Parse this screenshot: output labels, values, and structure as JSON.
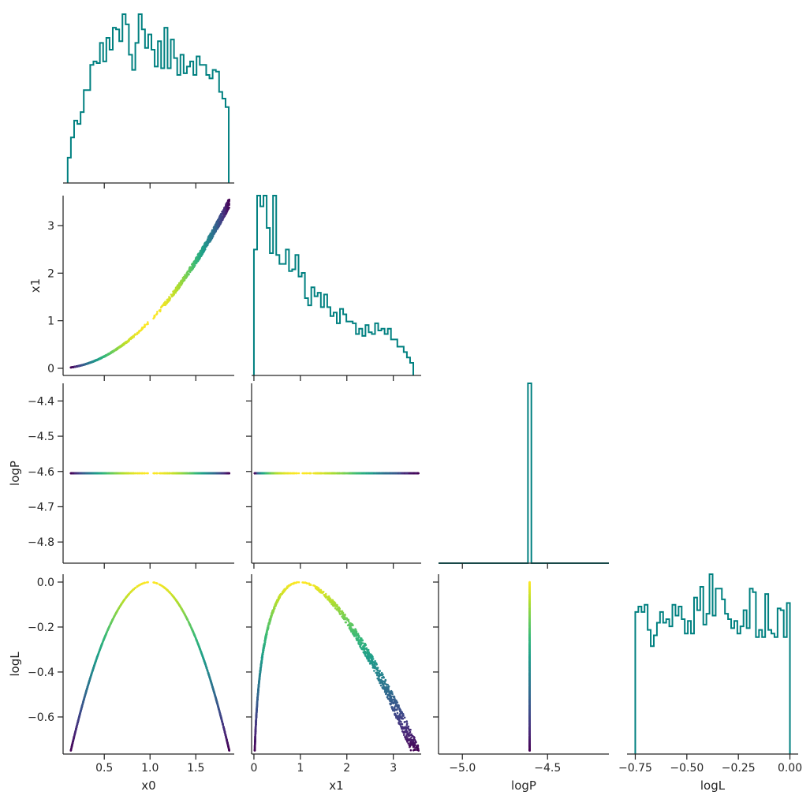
{
  "chart_data": {
    "type": "corner",
    "parameters": [
      "x0",
      "x1",
      "logP",
      "logL"
    ],
    "hist_color": "#008080",
    "colormap": "viridis",
    "color_by": "logL",
    "panels": [
      {
        "type": "histogram",
        "x": "x0",
        "xlim": [
          0.05,
          1.92
        ],
        "bin_edges_range": [
          0.1,
          1.86
        ],
        "ylim": [
          0,
          1
        ],
        "values": [
          0.15,
          0.27,
          0.37,
          0.35,
          0.42,
          0.55,
          0.55,
          0.7,
          0.72,
          0.71,
          0.83,
          0.72,
          0.86,
          0.79,
          0.92,
          0.91,
          0.84,
          1.0,
          0.94,
          0.76,
          0.67,
          0.83,
          1.0,
          0.91,
          0.8,
          0.88,
          0.79,
          0.69,
          0.84,
          0.68,
          0.92,
          0.68,
          0.85,
          0.74,
          0.64,
          0.76,
          0.65,
          0.69,
          0.72,
          0.64,
          0.75,
          0.7,
          0.7,
          0.64,
          0.62,
          0.67,
          0.66,
          0.54,
          0.5,
          0.45
        ],
        "tick_values": [
          0.5,
          1.0,
          1.5
        ]
      },
      {
        "type": "scatter",
        "x": "x0",
        "y": "x1",
        "xlim": [
          0.05,
          1.92
        ],
        "ylim": [
          -0.15,
          3.63
        ],
        "relation": "x1 = x0^2",
        "y_ticks": [
          0,
          1,
          2,
          3
        ],
        "y_tick_labels": [
          "0",
          "1",
          "2",
          "3"
        ]
      },
      {
        "type": "histogram",
        "x": "x1",
        "xlim": [
          -0.05,
          3.6
        ],
        "bin_edges_range": [
          0.0,
          3.43
        ],
        "ylim": [
          0,
          1
        ],
        "values": [
          0.7,
          1.0,
          0.94,
          1.0,
          0.82,
          0.68,
          1.0,
          0.67,
          0.62,
          0.62,
          0.7,
          0.58,
          0.59,
          0.67,
          0.55,
          0.57,
          0.43,
          0.39,
          0.49,
          0.44,
          0.46,
          0.38,
          0.45,
          0.38,
          0.33,
          0.35,
          0.29,
          0.37,
          0.34,
          0.3,
          0.3,
          0.29,
          0.23,
          0.26,
          0.22,
          0.28,
          0.24,
          0.23,
          0.29,
          0.25,
          0.26,
          0.23,
          0.26,
          0.2,
          0.2,
          0.16,
          0.16,
          0.13,
          0.1,
          0.07
        ],
        "tick_values": [
          0,
          1,
          2,
          3
        ]
      },
      {
        "type": "scatter",
        "x": "x0",
        "y": "logP",
        "xlim": [
          0.05,
          1.92
        ],
        "ylim": [
          -4.86,
          -4.35
        ],
        "constant_y": -4.605,
        "y_ticks": [
          -4.8,
          -4.7,
          -4.6,
          -4.5,
          -4.4
        ],
        "y_tick_labels": [
          "−4.8",
          "−4.7",
          "−4.6",
          "−4.5",
          "−4.4"
        ]
      },
      {
        "type": "scatter",
        "x": "x1",
        "y": "logP",
        "xlim": [
          -0.05,
          3.6
        ],
        "ylim": [
          -4.86,
          -4.35
        ],
        "constant_y": -4.605
      },
      {
        "type": "histogram",
        "x": "logP",
        "xlim": [
          -5.14,
          -4.14
        ],
        "spike_at": -4.605,
        "spike_width": 0.02,
        "ylim": [
          0,
          1
        ],
        "tick_values": [
          -5.0,
          -4.5
        ]
      },
      {
        "type": "scatter",
        "x": "x0",
        "y": "logL",
        "xlim": [
          0.05,
          1.92
        ],
        "ylim": [
          -0.765,
          0.035
        ],
        "relation": "logL = -(x0 - 1)^2",
        "y_ticks": [
          -0.6,
          -0.4,
          -0.2,
          0.0
        ],
        "y_tick_labels": [
          "−0.6",
          "−0.4",
          "−0.2",
          "0.0"
        ]
      },
      {
        "type": "scatter",
        "x": "x1",
        "y": "logL",
        "xlim": [
          -0.05,
          3.6
        ],
        "ylim": [
          -0.765,
          0.035
        ],
        "relation": "logL = -(sqrt(x1) - 1)^2"
      },
      {
        "type": "scatter",
        "x": "logP",
        "y": "logL",
        "xlim": [
          -5.14,
          -4.14
        ],
        "ylim": [
          -0.765,
          0.035
        ],
        "constant_x": -4.605
      },
      {
        "type": "histogram",
        "x": "logL",
        "xlim": [
          -0.79,
          0.04
        ],
        "bin_edges_range": [
          -0.75,
          0.0
        ],
        "ylim": [
          0,
          1
        ],
        "values": [
          0.79,
          0.82,
          0.79,
          0.83,
          0.69,
          0.6,
          0.66,
          0.73,
          0.79,
          0.73,
          0.75,
          0.71,
          0.83,
          0.77,
          0.82,
          0.75,
          0.67,
          0.74,
          0.67,
          0.87,
          0.8,
          0.93,
          0.72,
          0.78,
          1.0,
          0.77,
          0.92,
          0.92,
          0.86,
          0.78,
          0.75,
          0.7,
          0.74,
          0.67,
          0.71,
          0.8,
          0.7,
          0.92,
          0.9,
          0.65,
          0.69,
          0.65,
          0.89,
          0.69,
          0.67,
          0.65,
          0.81,
          0.8,
          0.65,
          0.84
        ],
        "tick_values": [
          -0.75,
          -0.5,
          -0.25,
          0.0
        ]
      }
    ],
    "tick_labels": {
      "x0": [
        "0.5",
        "1.0",
        "1.5"
      ],
      "x1": [
        "0",
        "1",
        "2",
        "3"
      ],
      "logP": [
        "−5.0",
        "−4.5"
      ],
      "logL": [
        "−0.75",
        "−0.50",
        "−0.25",
        "0.00"
      ]
    },
    "axis_labels": {
      "bottom": [
        "x0",
        "x1",
        "logP",
        "logL"
      ],
      "left": [
        "x1",
        "logP",
        "logL"
      ]
    }
  }
}
